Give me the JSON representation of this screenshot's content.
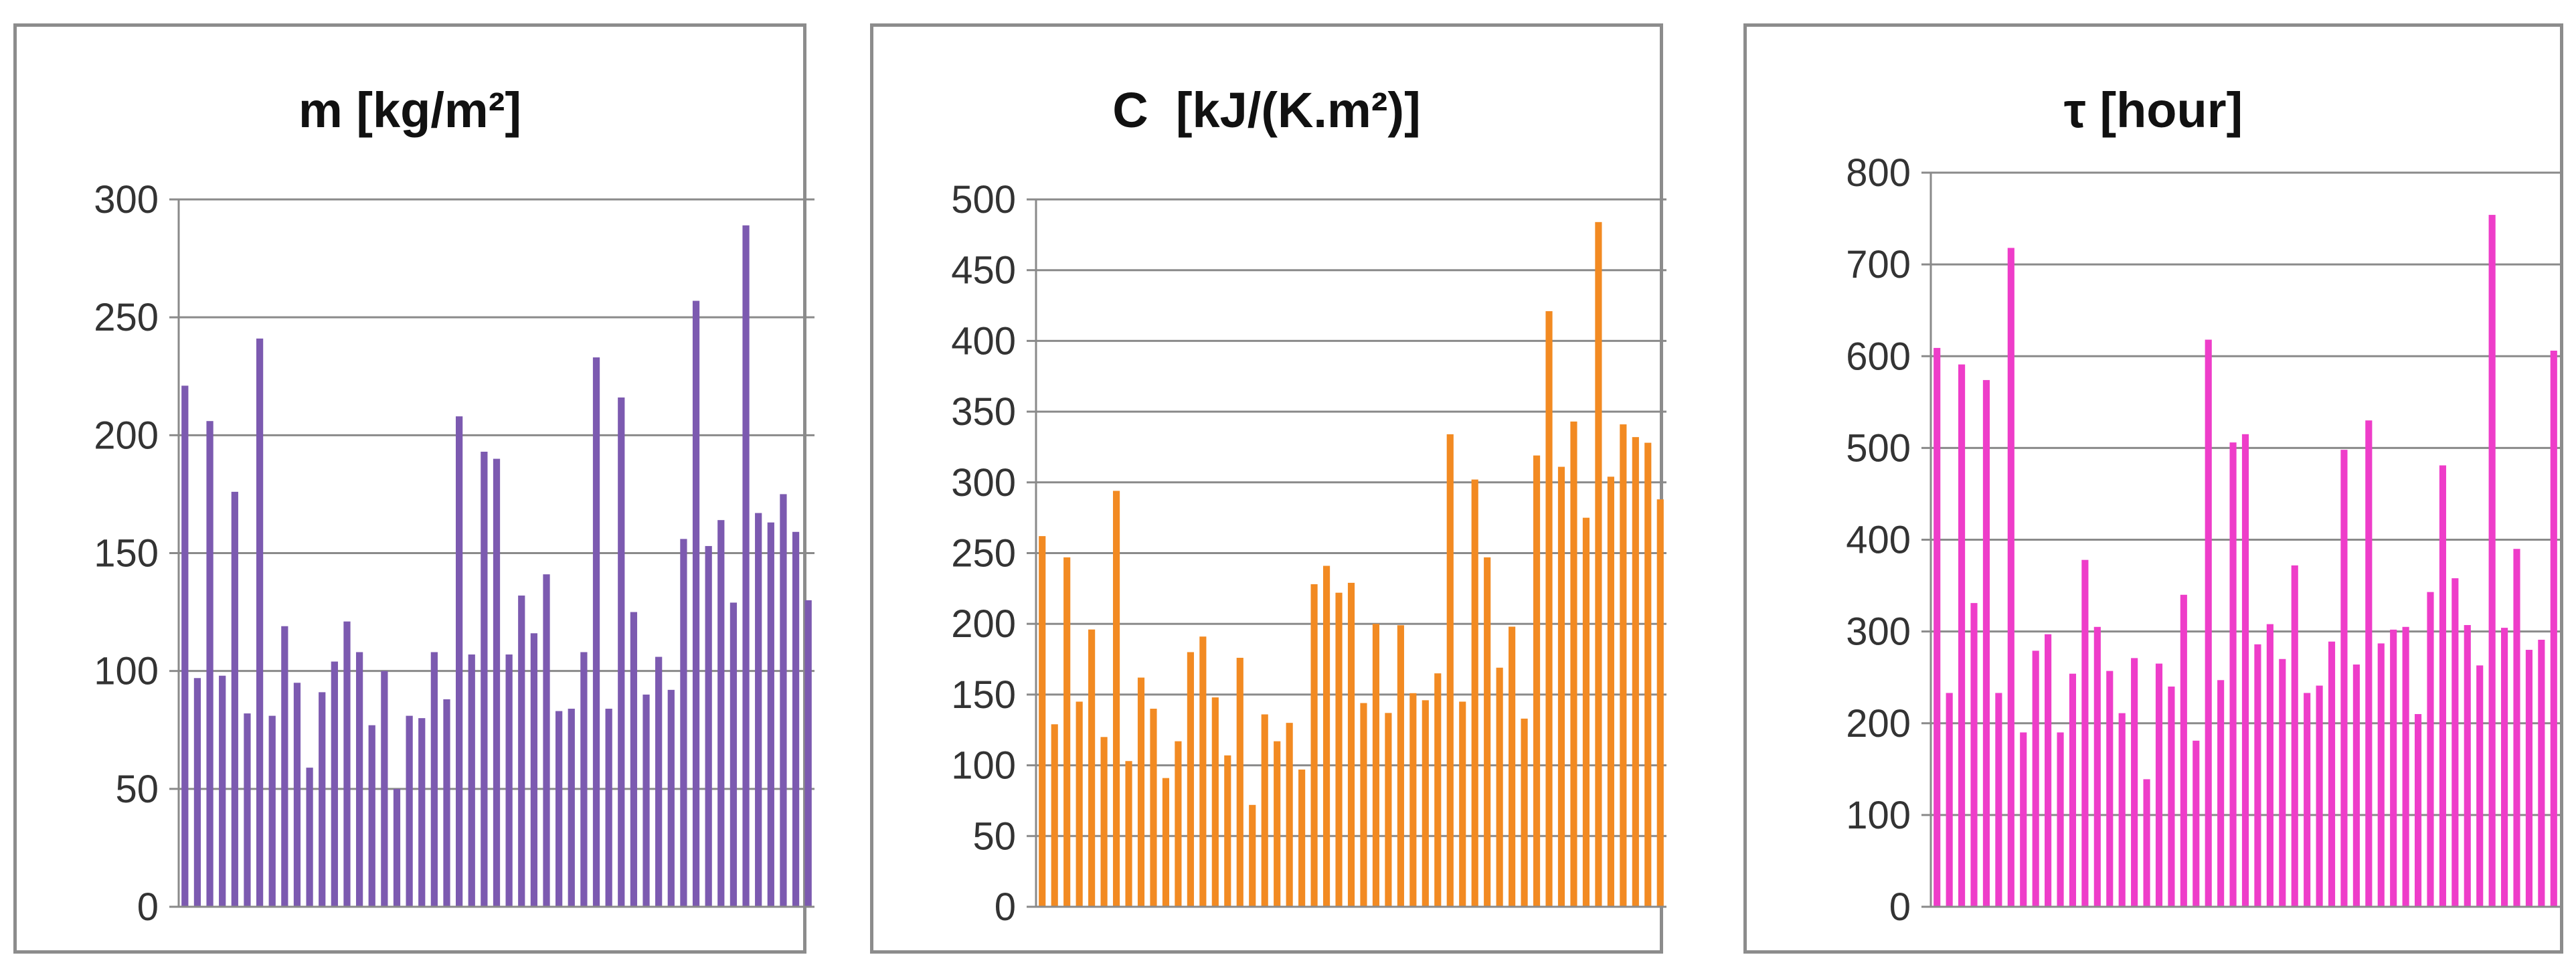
{
  "chart_data": [
    {
      "type": "bar",
      "title": "m [kg/m²]",
      "xlabel": "",
      "ylabel": "",
      "ylim": [
        0,
        300
      ],
      "yticks": [
        0,
        50,
        100,
        150,
        200,
        250,
        300
      ],
      "grid": true,
      "color": "#7c5ab0",
      "series": [
        {
          "values": [
            221,
            97,
            206,
            98,
            176,
            82,
            241,
            81,
            119,
            95,
            59,
            91,
            104,
            121,
            108,
            77,
            100,
            50,
            81,
            80,
            108,
            88,
            208,
            107,
            193,
            190,
            107,
            132,
            116,
            141,
            83,
            84,
            108,
            233,
            84,
            216,
            125,
            90,
            106,
            92,
            156,
            257,
            153,
            164,
            129,
            289,
            167,
            163,
            175,
            159,
            130
          ]
        }
      ]
    },
    {
      "type": "bar",
      "title": "C  [kJ/(K.m²)]",
      "xlabel": "",
      "ylabel": "",
      "ylim": [
        0,
        500
      ],
      "yticks": [
        0,
        50,
        100,
        150,
        200,
        250,
        300,
        350,
        400,
        450,
        500
      ],
      "grid": true,
      "color": "#f28a22",
      "series": [
        {
          "values": [
            262,
            129,
            247,
            145,
            196,
            120,
            294,
            103,
            162,
            140,
            91,
            117,
            180,
            191,
            148,
            107,
            176,
            72,
            136,
            117,
            130,
            97,
            228,
            241,
            222,
            229,
            144,
            200,
            137,
            199,
            151,
            146,
            165,
            334,
            145,
            302,
            247,
            169,
            198,
            133,
            319,
            421,
            311,
            343,
            275,
            484,
            304,
            341,
            332,
            328,
            288
          ]
        }
      ]
    },
    {
      "type": "bar",
      "title": "τ [hour]",
      "xlabel": "",
      "ylabel": "",
      "ylim": [
        0,
        800
      ],
      "yticks": [
        0,
        100,
        200,
        300,
        400,
        500,
        600,
        700,
        800
      ],
      "grid": true,
      "color": "#ee3dc9",
      "series": [
        {
          "values": [
            609,
            233,
            591,
            331,
            574,
            233,
            718,
            190,
            279,
            297,
            190,
            254,
            378,
            305,
            257,
            211,
            271,
            139,
            265,
            240,
            340,
            181,
            618,
            247,
            506,
            515,
            286,
            308,
            270,
            372,
            233,
            241,
            289,
            498,
            264,
            530,
            287,
            302,
            305,
            210,
            343,
            481,
            358,
            307,
            263,
            754,
            304,
            390,
            280,
            291,
            606
          ]
        }
      ]
    }
  ]
}
